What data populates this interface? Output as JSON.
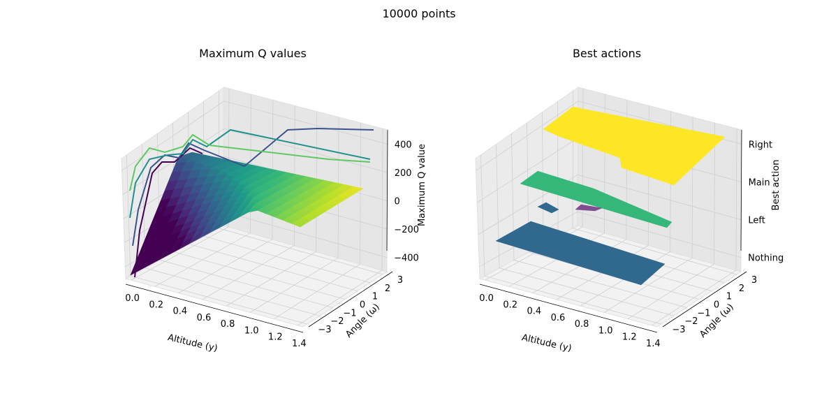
{
  "figure": {
    "title": "10000 points"
  },
  "chart_data": [
    {
      "type": "surface3d",
      "title": "Maximum Q values",
      "xlabel": "Altitude (y)",
      "ylabel": "Angle (ω)",
      "zlabel": "Maximum Q value",
      "x_ticks": [
        "0.0",
        "0.2",
        "0.4",
        "0.6",
        "0.8",
        "1.0",
        "1.2",
        "1.4"
      ],
      "y_ticks": [
        "−3",
        "−2",
        "−1",
        "0",
        "1",
        "2",
        "3"
      ],
      "z_ticks": [
        "−400",
        "−200",
        "0",
        "200",
        "400"
      ],
      "xlim": [
        0,
        1.5
      ],
      "ylim": [
        -3.3,
        3.3
      ],
      "zlim": [
        -500,
        500
      ],
      "colormap": "viridis",
      "contour_colors": [
        "#440154",
        "#3b528b",
        "#21918c",
        "#5ec962"
      ]
    },
    {
      "type": "surface3d",
      "title": "Best actions",
      "xlabel": "Altitude (y)",
      "ylabel": "Angle (ω)",
      "zlabel": "Best action",
      "x_ticks": [
        "0.0",
        "0.2",
        "0.4",
        "0.6",
        "0.8",
        "1.0",
        "1.2",
        "1.4"
      ],
      "y_ticks": [
        "−3",
        "−2",
        "−1",
        "0",
        "1",
        "2",
        "3"
      ],
      "z_ticks": [
        "Nothing",
        "Left",
        "Main",
        "Right"
      ],
      "xlim": [
        0,
        1.5
      ],
      "ylim": [
        -3.3,
        3.3
      ],
      "levels": [
        {
          "action": "Nothing",
          "color": "#31688e"
        },
        {
          "action": "Left",
          "color": "#35b779"
        },
        {
          "action": "Main",
          "color": "#7e4e90"
        },
        {
          "action": "Right",
          "color": "#fde725"
        }
      ]
    }
  ]
}
